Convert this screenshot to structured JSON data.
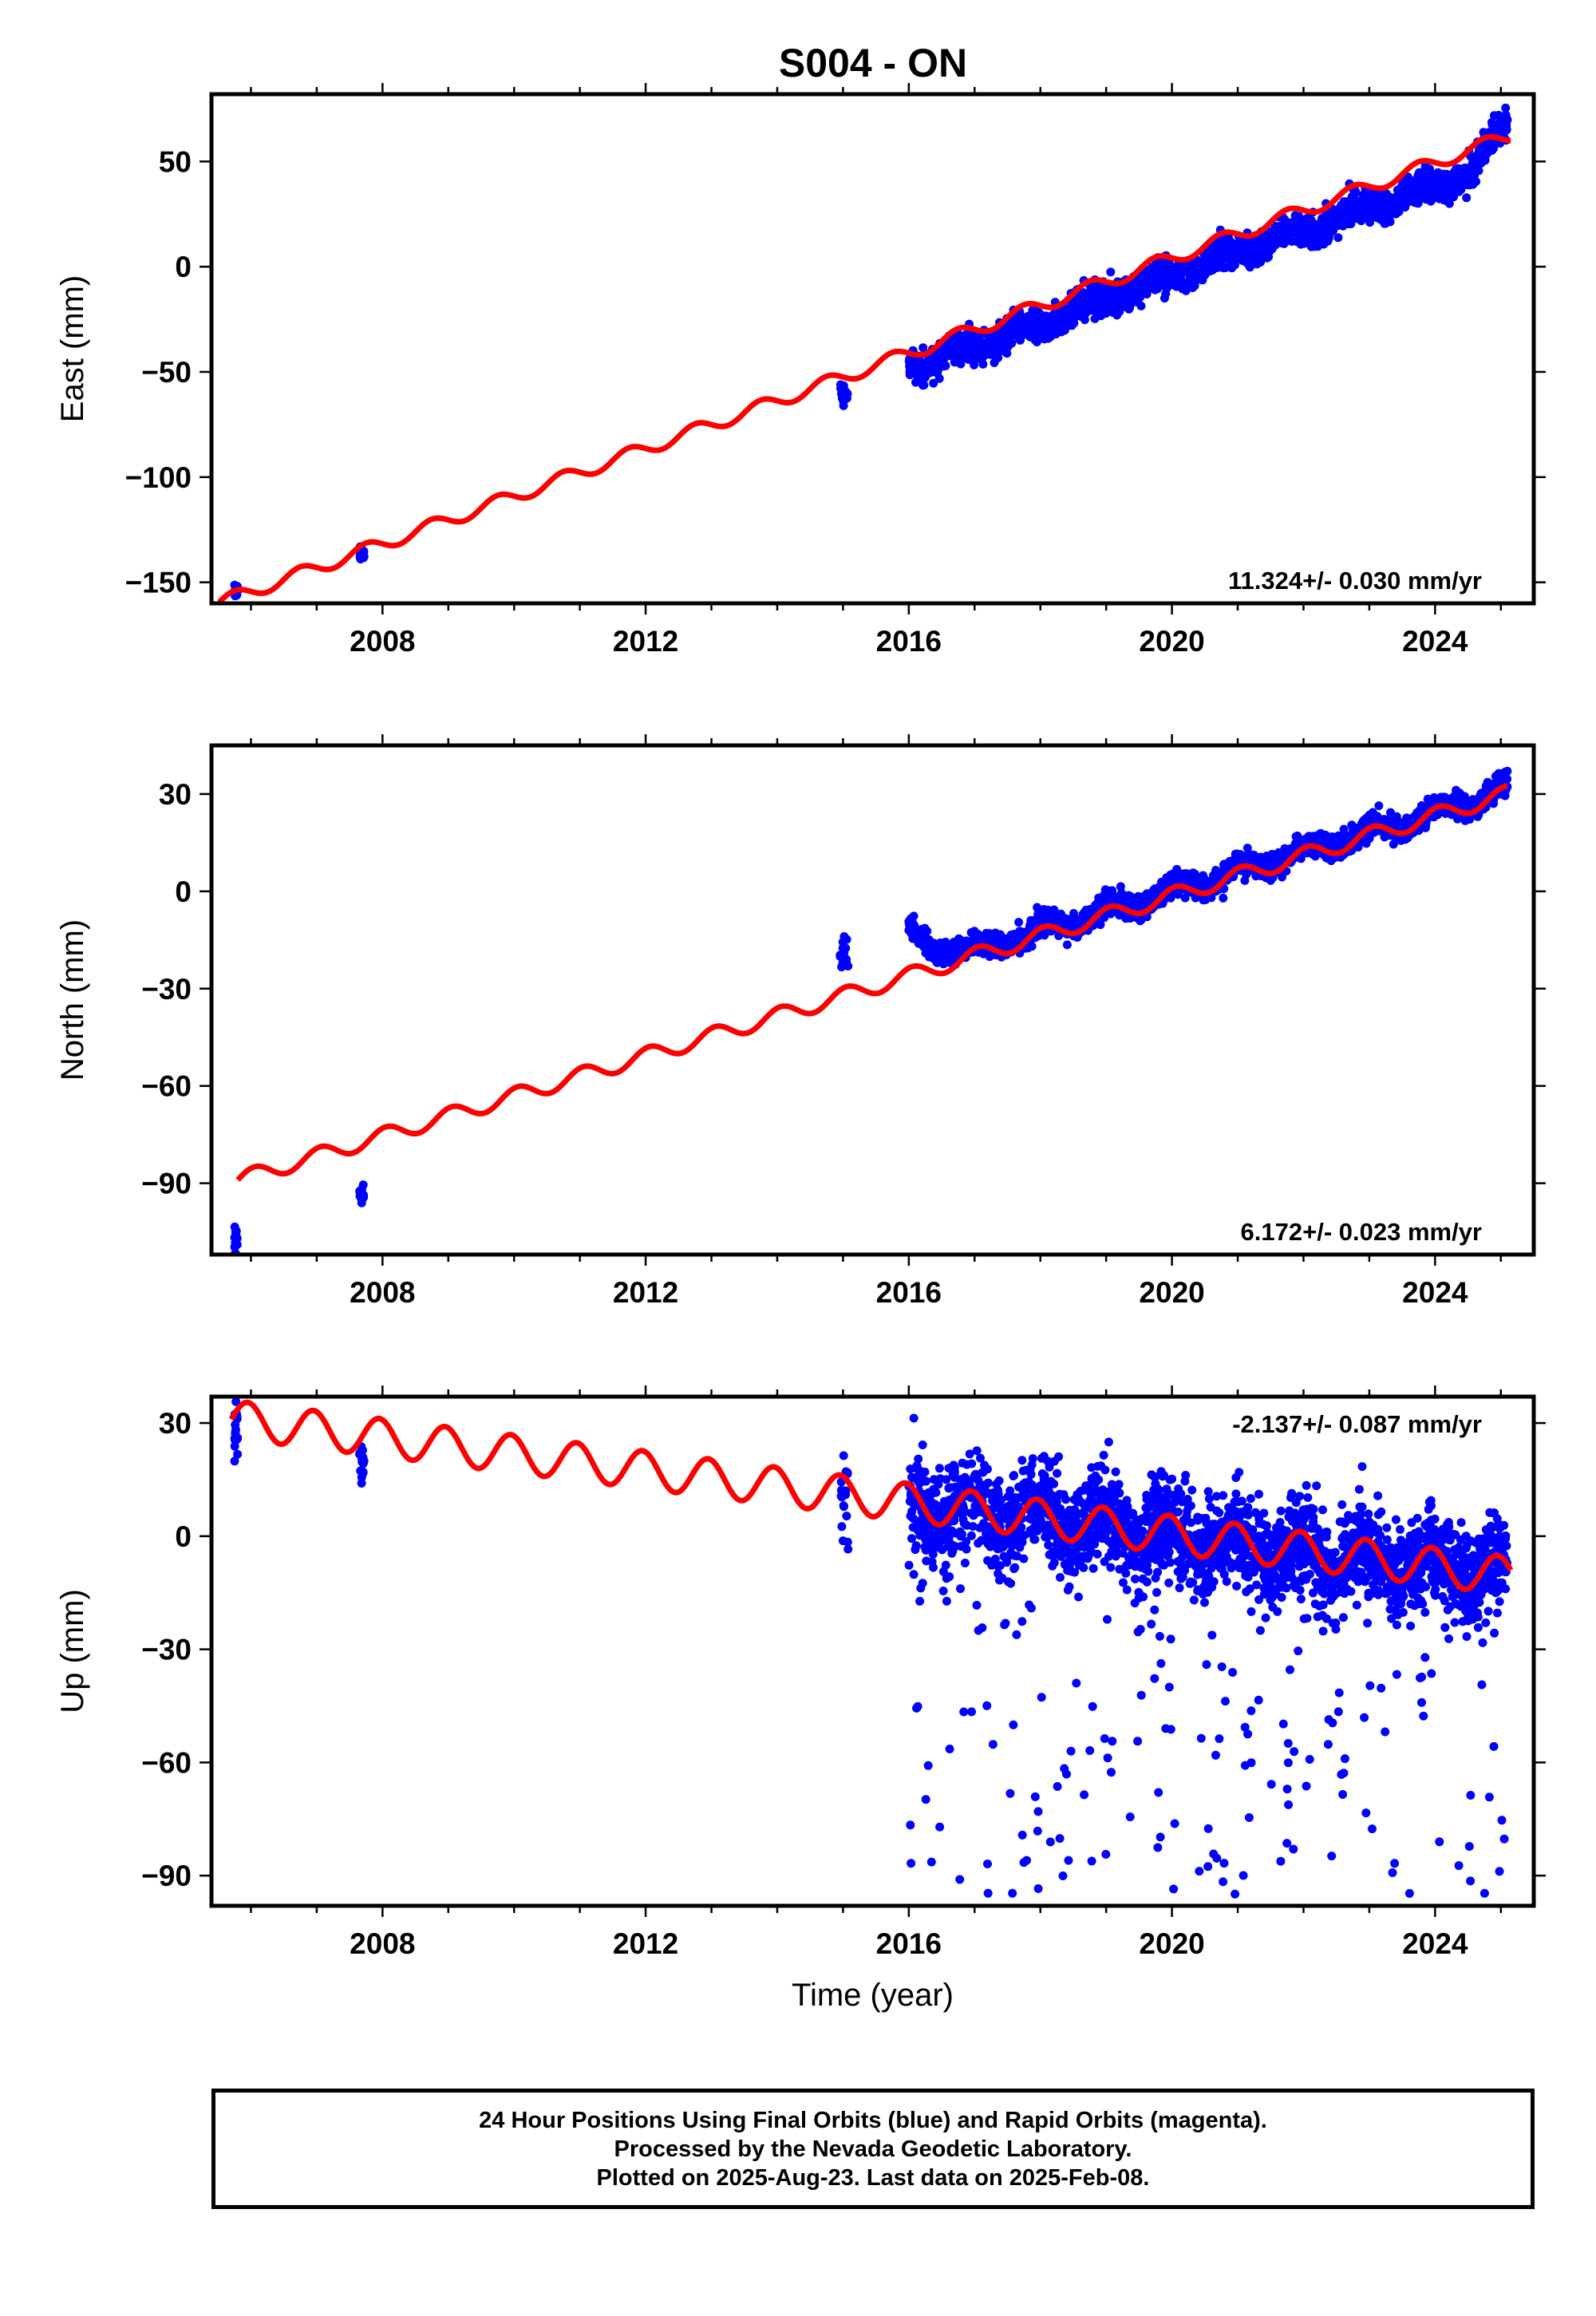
{
  "title": "S004 - ON",
  "colors": {
    "data": "#0000ff",
    "model": "#ff0000",
    "frame": "#000000"
  },
  "footer": {
    "lines": [
      "24 Hour Positions Using Final Orbits (blue) and Rapid Orbits (magenta).",
      "Processed by the Nevada Geodetic Laboratory.",
      "Plotted on 2025-Aug-23. Last data on 2025-Feb-08."
    ]
  },
  "chart_data": [
    {
      "type": "scatter",
      "component": "east",
      "ylabel": "East (mm)",
      "xlabel": "",
      "xlim": [
        2005.4,
        2025.5
      ],
      "ylim": [
        -160,
        82
      ],
      "xticks": [
        2008,
        2012,
        2016,
        2020,
        2024
      ],
      "xtick_labels": [
        "2008",
        "2012",
        "2016",
        "2020",
        "2024"
      ],
      "yticks": [
        -150,
        -100,
        -50,
        0,
        50
      ],
      "ytick_labels": [
        "−150",
        "−100",
        "−50",
        "0",
        "50"
      ],
      "annotation": "11.324+/- 0.030 mm/yr",
      "annotation_position": "bottom-right",
      "grid": false,
      "series": [
        {
          "role": "observations",
          "clusters": [
            {
              "x": [
                2005.75,
                2005.8
              ],
              "center": -153,
              "spread": 4
            },
            {
              "x": [
                2007.65,
                2007.72
              ],
              "center": -137,
              "spread": 3
            },
            {
              "x": [
                2014.95,
                2015.08
              ],
              "center": -61,
              "spread": 6
            }
          ],
          "continuous": [
            {
              "x": 2016.0,
              "y": -47
            },
            {
              "x": 2017.0,
              "y": -38
            },
            {
              "x": 2018.0,
              "y": -27
            },
            {
              "x": 2019.0,
              "y": -15
            },
            {
              "x": 2020.0,
              "y": -5
            },
            {
              "x": 2021.0,
              "y": 7
            },
            {
              "x": 2022.0,
              "y": 17
            },
            {
              "x": 2023.0,
              "y": 28
            },
            {
              "x": 2024.0,
              "y": 38
            },
            {
              "x": 2024.6,
              "y": 45
            },
            {
              "x": 2024.9,
              "y": 63
            },
            {
              "x": 2025.1,
              "y": 70
            }
          ],
          "scatter_spread": 8
        },
        {
          "role": "model",
          "start": [
            2005.5,
            -160
          ],
          "rate": 11.324,
          "seasonal_amplitude": 3.2
        }
      ]
    },
    {
      "type": "scatter",
      "component": "north",
      "ylabel": "North (mm)",
      "xlabel": "",
      "xlim": [
        2005.4,
        2025.5
      ],
      "ylim": [
        -112,
        45
      ],
      "xticks": [
        2008,
        2012,
        2016,
        2020,
        2024
      ],
      "xtick_labels": [
        "2008",
        "2012",
        "2016",
        "2020",
        "2024"
      ],
      "yticks": [
        -90,
        -60,
        -30,
        0,
        30
      ],
      "ytick_labels": [
        "−90",
        "−60",
        "−30",
        "0",
        "30"
      ],
      "annotation": "6.172+/- 0.023 mm/yr",
      "annotation_position": "bottom-right",
      "grid": false,
      "series": [
        {
          "role": "observations",
          "clusters": [
            {
              "x": [
                2005.75,
                2005.8
              ],
              "center": -107,
              "spread": 4
            },
            {
              "x": [
                2007.65,
                2007.72
              ],
              "center": -94,
              "spread": 2
            },
            {
              "x": [
                2014.95,
                2015.08
              ],
              "center": -20,
              "spread": 5
            }
          ],
          "continuous": [
            {
              "x": 2016.0,
              "y": -13
            },
            {
              "x": 2016.3,
              "y": -17
            },
            {
              "x": 2017.0,
              "y": -18
            },
            {
              "x": 2018.0,
              "y": -12
            },
            {
              "x": 2019.0,
              "y": -6
            },
            {
              "x": 2020.0,
              "y": 0
            },
            {
              "x": 2021.0,
              "y": 6
            },
            {
              "x": 2022.0,
              "y": 12
            },
            {
              "x": 2023.0,
              "y": 18
            },
            {
              "x": 2024.0,
              "y": 24
            },
            {
              "x": 2025.1,
              "y": 32
            }
          ],
          "scatter_spread": 4
        },
        {
          "role": "model",
          "start": [
            2005.8,
            -89
          ],
          "rate": 6.172,
          "seasonal_amplitude": 2.5
        }
      ]
    },
    {
      "type": "scatter",
      "component": "up",
      "ylabel": "Up (mm)",
      "xlabel": "Time (year)",
      "xlim": [
        2005.4,
        2025.5
      ],
      "ylim": [
        -98,
        37
      ],
      "xticks": [
        2008,
        2012,
        2016,
        2020,
        2024
      ],
      "xtick_labels": [
        "2008",
        "2012",
        "2016",
        "2020",
        "2024"
      ],
      "yticks": [
        -90,
        -60,
        -30,
        0,
        30
      ],
      "ytick_labels": [
        "−90",
        "−60",
        "−30",
        "0",
        "30"
      ],
      "annotation": "-2.137+/- 0.087 mm/yr",
      "annotation_position": "top-right",
      "grid": false,
      "series": [
        {
          "role": "observations",
          "clusters": [
            {
              "x": [
                2005.75,
                2005.8
              ],
              "center": 26,
              "spread": 8
            },
            {
              "x": [
                2007.65,
                2007.72
              ],
              "center": 20,
              "spread": 6
            },
            {
              "x": [
                2014.95,
                2015.08
              ],
              "center": 10,
              "spread": 12
            }
          ],
          "continuous": [
            {
              "x": 2016.0,
              "y": 8
            },
            {
              "x": 2018.0,
              "y": 5
            },
            {
              "x": 2020.0,
              "y": 0
            },
            {
              "x": 2022.0,
              "y": -5
            },
            {
              "x": 2024.0,
              "y": -8
            },
            {
              "x": 2025.1,
              "y": -10
            }
          ],
          "scatter_spread": 14,
          "outlier_min": -95
        },
        {
          "role": "model",
          "start": [
            2005.7,
            31
          ],
          "rate": -2.137,
          "seasonal_amplitude": 5
        }
      ]
    }
  ]
}
